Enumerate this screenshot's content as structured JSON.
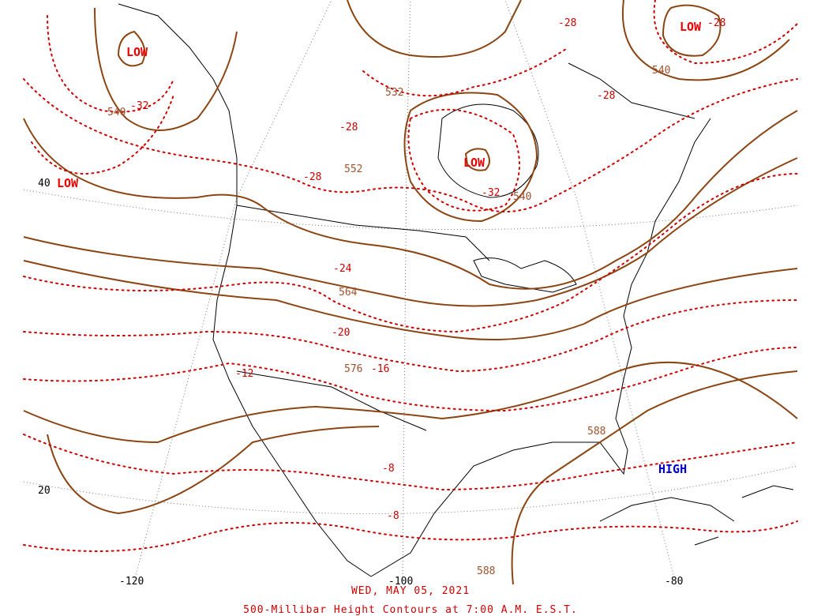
{
  "map": {
    "date": "WED, MAY 05, 2021",
    "title": "500-Millibar Height Contours at 7:00 A.M. E.S.T.",
    "colors": {
      "height_contour": "#8b4513",
      "temperature_isotherm": "#cc0000",
      "low_label": "#ee0000",
      "high_label": "#0000cc",
      "geography": "#000000"
    },
    "pressure_centers": [
      {
        "type": "LOW",
        "id": "low-alaska"
      },
      {
        "type": "LOW",
        "id": "low-pacific"
      },
      {
        "type": "LOW",
        "id": "low-hudson"
      },
      {
        "type": "LOW",
        "id": "low-greenland"
      },
      {
        "type": "HIGH",
        "id": "high-caribbean"
      }
    ],
    "height_labels": [
      "540",
      "532",
      "552",
      "540",
      "564",
      "576",
      "588",
      "540",
      "588"
    ],
    "temperature_labels": [
      "-32",
      "-28",
      "-28",
      "-28",
      "-28",
      "-32",
      "-24",
      "-20",
      "-16",
      "-12",
      "-8",
      "-8",
      "-28"
    ],
    "latitude_labels": [
      "40",
      "20"
    ],
    "longitude_labels": [
      "-120",
      "-100",
      "-80"
    ]
  }
}
